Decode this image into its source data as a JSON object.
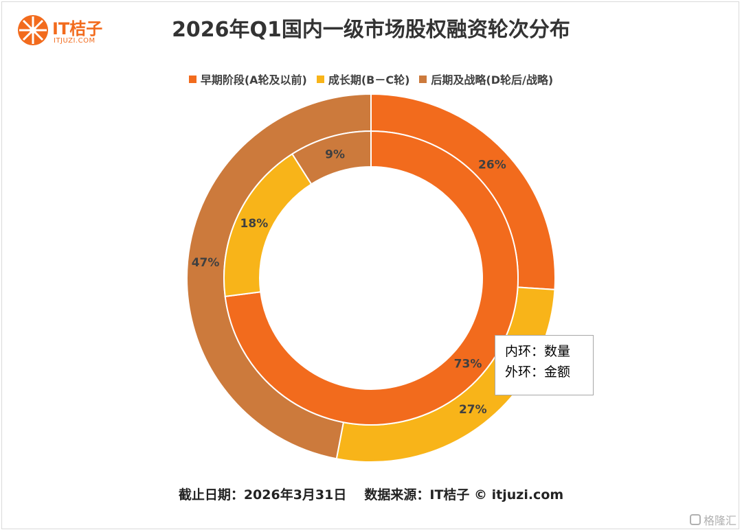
{
  "brand": {
    "name": "IT桔子",
    "url": "ITJUZI.COM"
  },
  "colors": {
    "early": "#f26b1d",
    "growth": "#f8b419",
    "late": "#cc7a3c"
  },
  "chart_data": {
    "type": "pie",
    "title": "2026年Q1国内一级市场股权融资轮次分布",
    "categories": [
      "早期阶段(A轮及以前)",
      "成长期(B－C轮)",
      "后期及战略(D轮后/战略)"
    ],
    "series": [
      {
        "name": "内环：数量",
        "values": [
          73,
          18,
          9
        ]
      },
      {
        "name": "外环：金额",
        "values": [
          26,
          27,
          47
        ]
      }
    ],
    "legend_position": "top",
    "ring_note": [
      "内环：数量",
      "外环：金额"
    ]
  },
  "footer": {
    "date": "截止日期：2026年3月31日",
    "source": "数据来源：IT桔子 © itjuzi.com"
  },
  "watermark": {
    "badge": "格隆汇"
  }
}
